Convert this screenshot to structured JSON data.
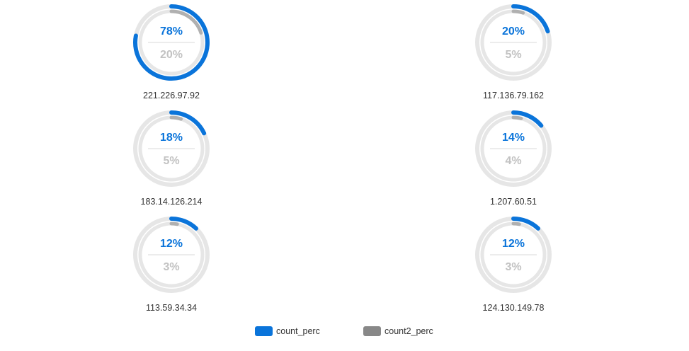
{
  "chart_data": {
    "type": "radial-gauge",
    "title": "",
    "colors": {
      "primary": "#0a74da",
      "secondary": "#b0b0b0",
      "track": "#e6e6e6",
      "divider": "#d9d9d9"
    },
    "series": [
      {
        "name": "count_perc",
        "color": "#0a74da"
      },
      {
        "name": "count2_perc",
        "color": "#888888"
      }
    ],
    "items": [
      {
        "label": "221.226.97.92",
        "count_perc": 78,
        "count2_perc": 20,
        "count_perc_text": "78%",
        "count2_perc_text": "20%"
      },
      {
        "label": "117.136.79.162",
        "count_perc": 20,
        "count2_perc": 5,
        "count_perc_text": "20%",
        "count2_perc_text": "5%"
      },
      {
        "label": "183.14.126.214",
        "count_perc": 18,
        "count2_perc": 5,
        "count_perc_text": "18%",
        "count2_perc_text": "5%"
      },
      {
        "label": "1.207.60.51",
        "count_perc": 14,
        "count2_perc": 4,
        "count_perc_text": "14%",
        "count2_perc_text": "4%"
      },
      {
        "label": "113.59.34.34",
        "count_perc": 12,
        "count2_perc": 3,
        "count_perc_text": "12%",
        "count2_perc_text": "3%"
      },
      {
        "label": "124.130.149.78",
        "count_perc": 12,
        "count2_perc": 3,
        "count_perc_text": "12%",
        "count2_perc_text": "3%"
      }
    ],
    "legend": {
      "placement": "bottom-center"
    }
  }
}
